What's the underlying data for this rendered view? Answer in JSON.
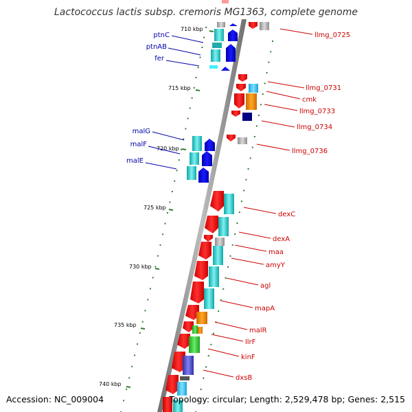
{
  "title": "Lactococcus lactis subsp. cremoris MG1363, complete genome",
  "footer": {
    "accession": "Accession: NC_009004",
    "summary": "Topology: circular; Length: 2,529,478 bp; Genes: 2,515"
  },
  "colors": {
    "backbone": "#8c8c8c",
    "tick": "#2e7d2e",
    "red": "#ff0000",
    "blue": "#0000ee",
    "cyan": "#20c8c8",
    "orange": "#ff8c00",
    "gray": "#aaaaaa",
    "navy": "#000080",
    "green": "#33cc33",
    "lightblue": "#33ccff",
    "label_blue": "#0000aa",
    "label_red": "#cc0000"
  },
  "ticks": [
    "710 kbp",
    "715 kbp",
    "720 kbp",
    "725 kbp",
    "730 kbp",
    "735 kbp",
    "740 kbp"
  ],
  "genes_left": [
    "ptnC",
    "ptnAB",
    "fer",
    "malG",
    "malF",
    "malE"
  ],
  "genes_right": [
    "llmg_0725",
    "llmg_0731",
    "cmk",
    "llmg_0733",
    "llmg_0734",
    "llmg_0736",
    "dexC",
    "dexA",
    "maa",
    "amyY",
    "agl",
    "mapA",
    "malR",
    "llrF",
    "kinF",
    "dxsB"
  ]
}
